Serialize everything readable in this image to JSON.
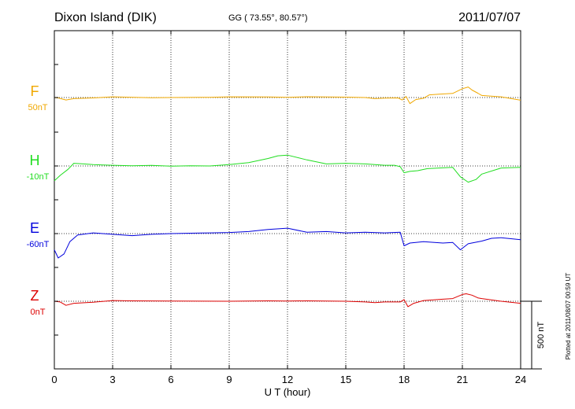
{
  "header": {
    "station": "Dixon Island (DIK)",
    "coords": "GG ( 73.55°,  80.57°)",
    "date": "2011/07/07"
  },
  "plotted_note": "Plotted at 2011/08/07 00:59 UT",
  "chart_data": {
    "type": "line",
    "xlabel": "U T (hour)",
    "xlim": [
      0,
      24
    ],
    "x_ticks": [
      0,
      3,
      6,
      9,
      12,
      15,
      18,
      21,
      24
    ],
    "x_tick_labels": [
      "0",
      "3",
      "6",
      "9",
      "12",
      "15",
      "18",
      "21",
      "24"
    ],
    "scale_bar": {
      "value": 500,
      "label": "500 nT"
    },
    "grid": true,
    "series": [
      {
        "name": "F",
        "baseline_label": "50nT",
        "color": "#f0a800",
        "points": [
          [
            0,
            0
          ],
          [
            0.2,
            -3
          ],
          [
            0.6,
            -18
          ],
          [
            1,
            -8
          ],
          [
            2,
            -3
          ],
          [
            3,
            5
          ],
          [
            5,
            -2
          ],
          [
            6,
            0
          ],
          [
            8,
            2
          ],
          [
            9,
            5
          ],
          [
            11,
            4
          ],
          [
            12,
            2
          ],
          [
            13,
            6
          ],
          [
            15,
            3
          ],
          [
            16,
            0
          ],
          [
            16.5,
            -8
          ],
          [
            17,
            -4
          ],
          [
            17.7,
            -3
          ],
          [
            17.9,
            -18
          ],
          [
            18.1,
            8
          ],
          [
            18.3,
            -45
          ],
          [
            18.6,
            -15
          ],
          [
            19,
            -5
          ],
          [
            19.3,
            20
          ],
          [
            19.8,
            25
          ],
          [
            20.5,
            30
          ],
          [
            21,
            65
          ],
          [
            21.3,
            78
          ],
          [
            21.5,
            55
          ],
          [
            21.8,
            32
          ],
          [
            22,
            15
          ],
          [
            23,
            5
          ],
          [
            24,
            -20
          ]
        ]
      },
      {
        "name": "H",
        "baseline_label": "-10nT",
        "color": "#20dd20",
        "points": [
          [
            0,
            -110
          ],
          [
            0.3,
            -70
          ],
          [
            0.7,
            -25
          ],
          [
            1,
            20
          ],
          [
            1.5,
            15
          ],
          [
            2,
            10
          ],
          [
            3,
            5
          ],
          [
            4,
            2
          ],
          [
            5,
            4
          ],
          [
            6,
            -2
          ],
          [
            7,
            2
          ],
          [
            8,
            0
          ],
          [
            9,
            10
          ],
          [
            10,
            25
          ],
          [
            11,
            55
          ],
          [
            11.5,
            75
          ],
          [
            12,
            80
          ],
          [
            13,
            45
          ],
          [
            14,
            15
          ],
          [
            15,
            20
          ],
          [
            16,
            15
          ],
          [
            17,
            5
          ],
          [
            17.5,
            5
          ],
          [
            17.8,
            -5
          ],
          [
            18,
            -50
          ],
          [
            18.3,
            -40
          ],
          [
            18.7,
            -35
          ],
          [
            19.2,
            -20
          ],
          [
            19.8,
            -15
          ],
          [
            20.5,
            -10
          ],
          [
            20.9,
            -80
          ],
          [
            21.3,
            -120
          ],
          [
            21.7,
            -100
          ],
          [
            22,
            -60
          ],
          [
            23,
            -15
          ],
          [
            24,
            -10
          ]
        ]
      },
      {
        "name": "E",
        "baseline_label": "-60nT",
        "color": "#0000dd",
        "points": [
          [
            0,
            -120
          ],
          [
            0.2,
            -180
          ],
          [
            0.5,
            -150
          ],
          [
            0.8,
            -60
          ],
          [
            1.2,
            -10
          ],
          [
            2,
            5
          ],
          [
            3,
            -5
          ],
          [
            4,
            -15
          ],
          [
            5,
            -5
          ],
          [
            6,
            0
          ],
          [
            7,
            3
          ],
          [
            8,
            5
          ],
          [
            9,
            8
          ],
          [
            10,
            15
          ],
          [
            11,
            30
          ],
          [
            12,
            40
          ],
          [
            13,
            10
          ],
          [
            14,
            15
          ],
          [
            15,
            5
          ],
          [
            16,
            10
          ],
          [
            17,
            5
          ],
          [
            17.8,
            10
          ],
          [
            18,
            -90
          ],
          [
            18.3,
            -70
          ],
          [
            19,
            -60
          ],
          [
            20,
            -70
          ],
          [
            20.5,
            -65
          ],
          [
            20.9,
            -120
          ],
          [
            21.3,
            -75
          ],
          [
            22,
            -55
          ],
          [
            22.5,
            -35
          ],
          [
            23,
            -30
          ],
          [
            24,
            -45
          ]
        ]
      },
      {
        "name": "Z",
        "baseline_label": "0nT",
        "color": "#dd0000",
        "points": [
          [
            0,
            0
          ],
          [
            0.3,
            -5
          ],
          [
            0.6,
            -30
          ],
          [
            1,
            -15
          ],
          [
            2,
            -7
          ],
          [
            3,
            5
          ],
          [
            4,
            3
          ],
          [
            6,
            2
          ],
          [
            9,
            0
          ],
          [
            11,
            3
          ],
          [
            12,
            2
          ],
          [
            13,
            3
          ],
          [
            15,
            0
          ],
          [
            16,
            -5
          ],
          [
            16.5,
            -10
          ],
          [
            17,
            -5
          ],
          [
            17.8,
            -5
          ],
          [
            18,
            12
          ],
          [
            18.2,
            -40
          ],
          [
            18.5,
            -15
          ],
          [
            19,
            5
          ],
          [
            20,
            15
          ],
          [
            20.5,
            20
          ],
          [
            21,
            50
          ],
          [
            21.2,
            55
          ],
          [
            21.5,
            45
          ],
          [
            21.8,
            25
          ],
          [
            22,
            20
          ],
          [
            23,
            0
          ],
          [
            24,
            -15
          ]
        ]
      }
    ]
  }
}
